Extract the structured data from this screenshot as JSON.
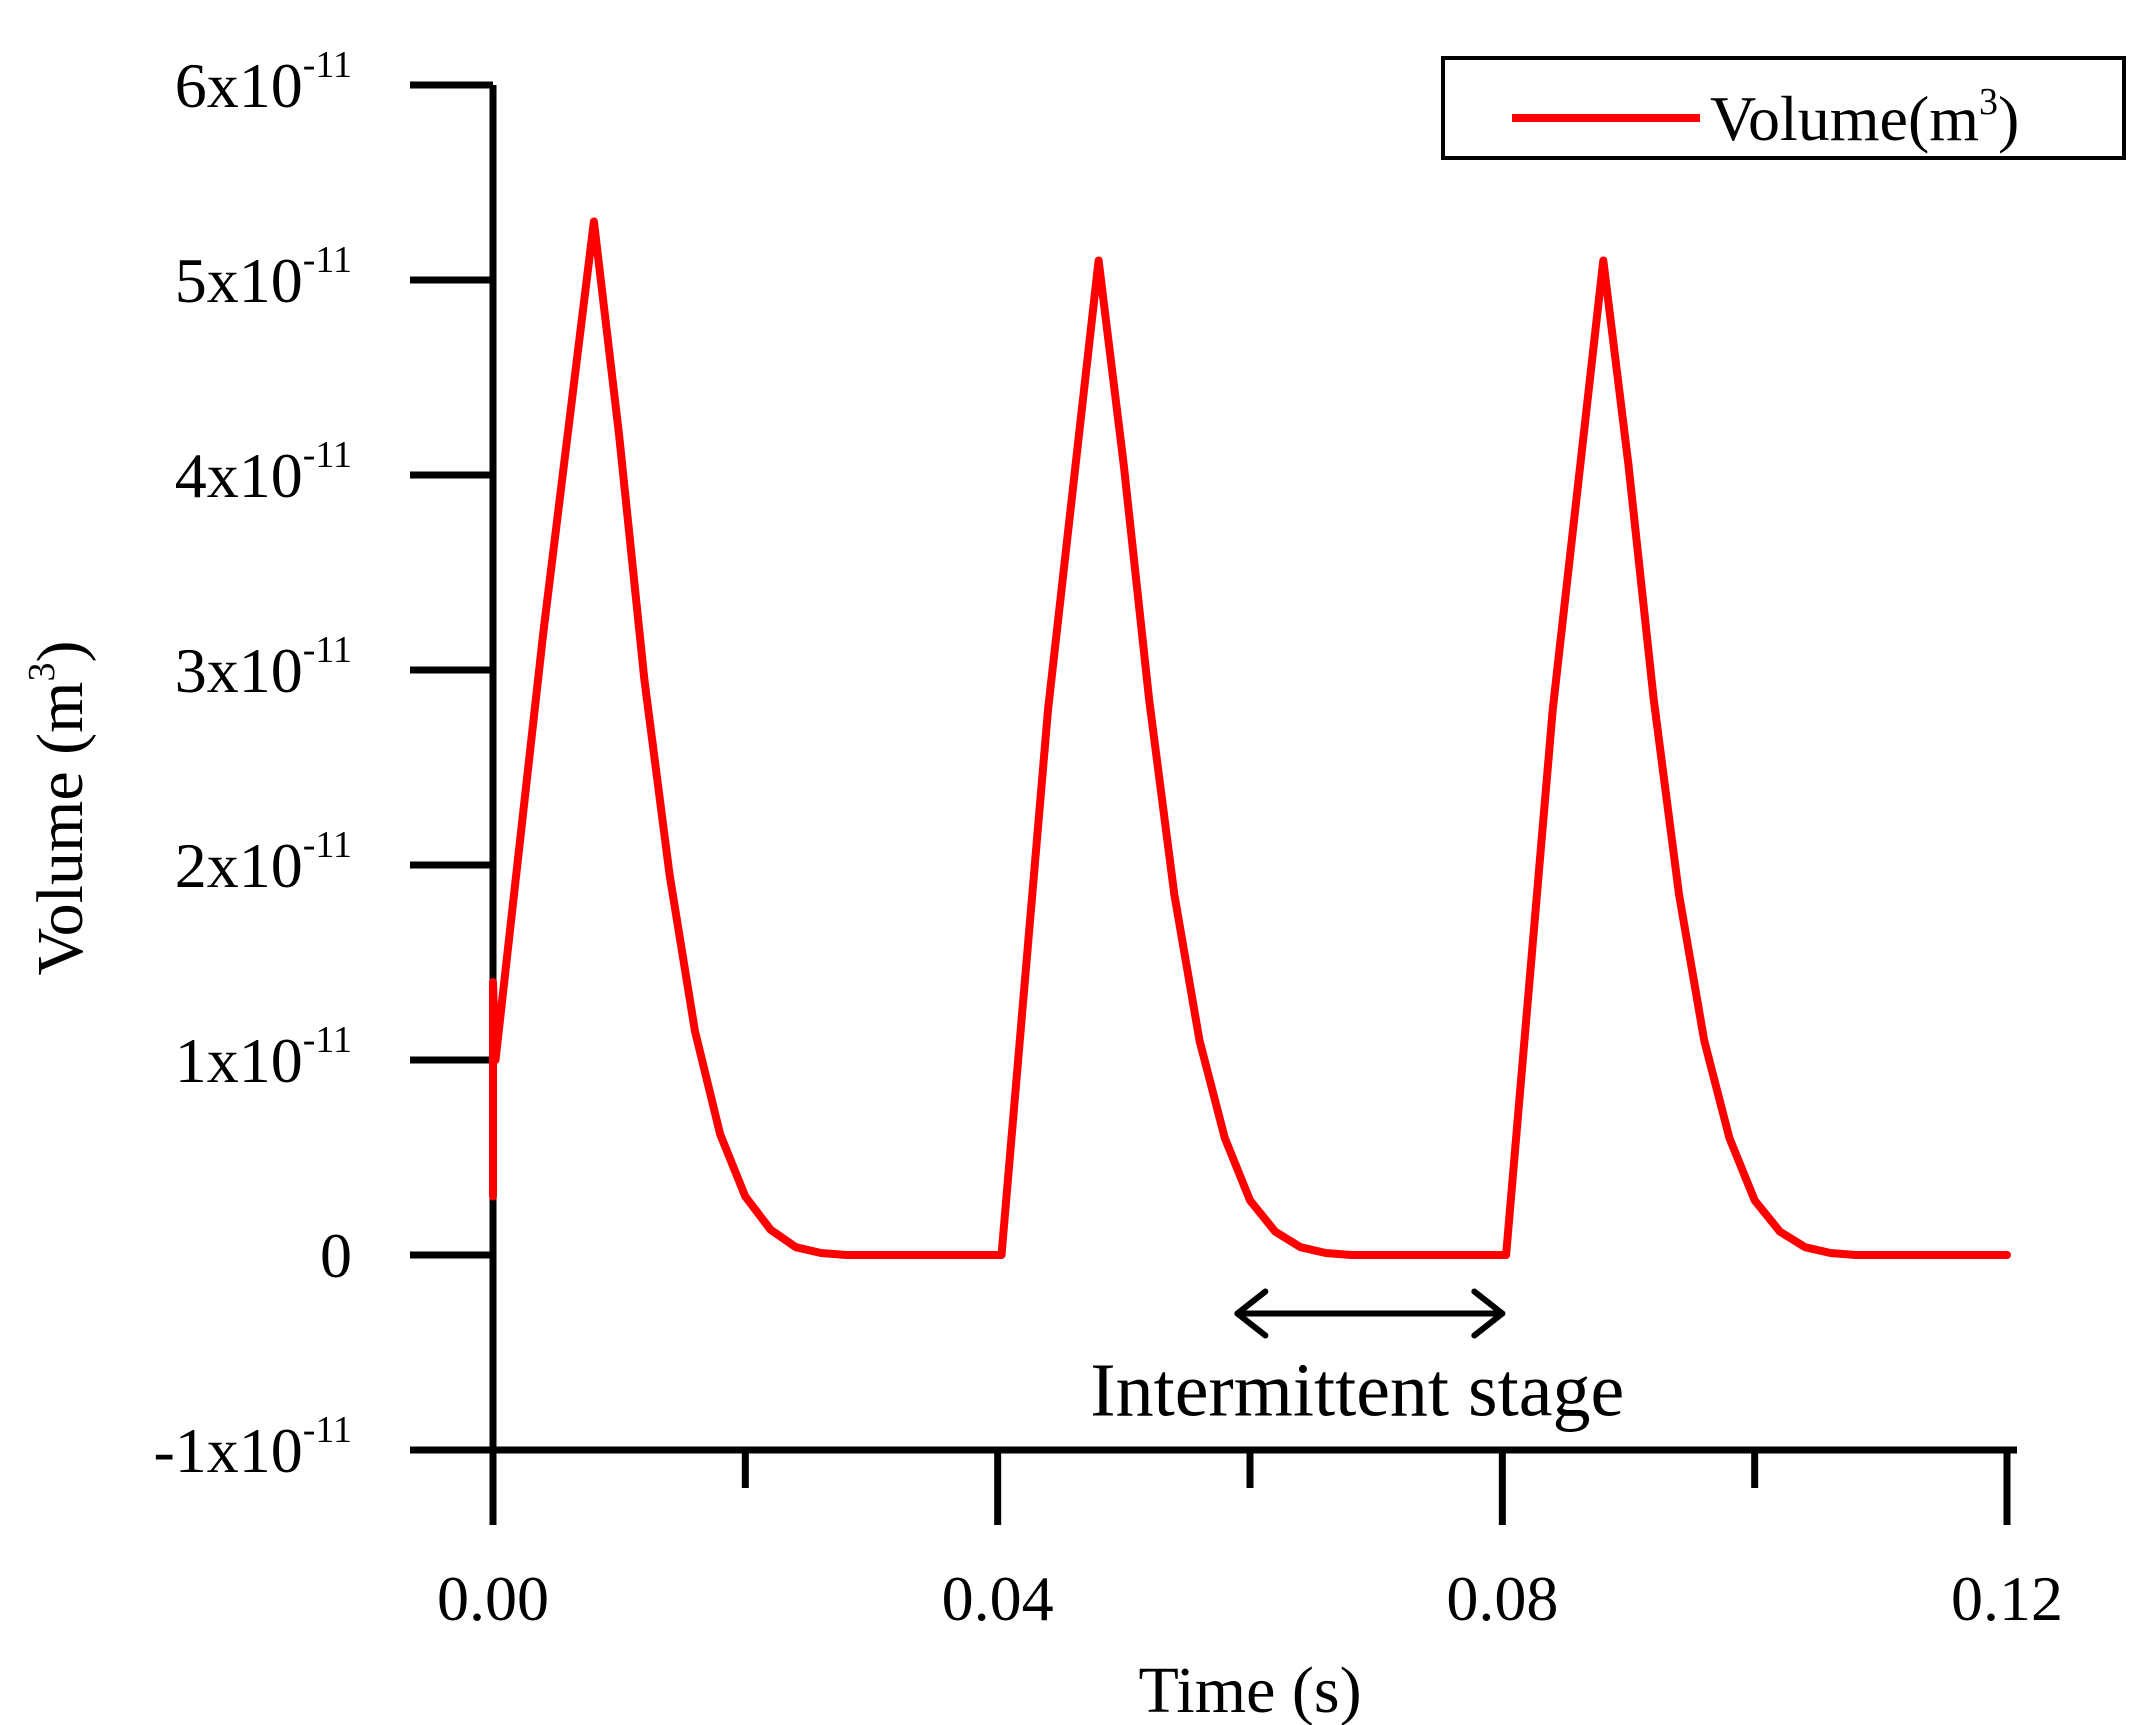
{
  "chart_data": {
    "type": "line",
    "title": "",
    "xlabel": "Time (s)",
    "ylabel": {
      "base": "Volume (m",
      "sup": "3",
      "close": ")"
    },
    "xlim": [
      0.0,
      0.12
    ],
    "ylim": [
      -1e-11,
      6e-11
    ],
    "x_major_ticks": [
      0.0,
      0.04,
      0.08,
      0.12
    ],
    "x_tick_labels": [
      "0.00",
      "0.04",
      "0.08",
      "0.12"
    ],
    "x_minor_ticks": [
      0.02,
      0.06,
      0.1
    ],
    "y_ticks": [
      {
        "value": -1e-11,
        "base": "-1x10",
        "exp": "-11"
      },
      {
        "value": 0,
        "base": "0",
        "exp": ""
      },
      {
        "value": 1e-11,
        "base": "1x10",
        "exp": "-11"
      },
      {
        "value": 2e-11,
        "base": "2x10",
        "exp": "-11"
      },
      {
        "value": 3e-11,
        "base": "3x10",
        "exp": "-11"
      },
      {
        "value": 4e-11,
        "base": "4x10",
        "exp": "-11"
      },
      {
        "value": 5e-11,
        "base": "5x10",
        "exp": "-11"
      },
      {
        "value": 6e-11,
        "base": "6x10",
        "exp": "-11"
      }
    ],
    "grid": false,
    "legend": {
      "position": "top-right",
      "label_base": "Volume(m",
      "label_sup": "3",
      "label_close": ")"
    },
    "series": [
      {
        "name": "Volume(m3)",
        "color": "#ff0000",
        "x": [
          0.0,
          0.0,
          0.0002,
          0.004,
          0.008,
          0.01,
          0.012,
          0.014,
          0.016,
          0.018,
          0.02,
          0.022,
          0.024,
          0.026,
          0.028,
          0.03,
          0.035,
          0.04,
          0.0403,
          0.044,
          0.048,
          0.05,
          0.052,
          0.054,
          0.056,
          0.058,
          0.06,
          0.062,
          0.064,
          0.066,
          0.068,
          0.07,
          0.075,
          0.08,
          0.0803,
          0.084,
          0.088,
          0.09,
          0.092,
          0.094,
          0.096,
          0.098,
          0.1,
          0.102,
          0.104,
          0.106,
          0.108,
          0.11,
          0.115,
          0.12
        ],
        "y": [
          3e-12,
          1.4e-11,
          1e-11,
          3.2e-11,
          5.3e-11,
          4.2e-11,
          2.95e-11,
          1.95e-11,
          1.15e-11,
          6.2e-12,
          3e-12,
          1.3e-12,
          4e-13,
          1e-13,
          0.0,
          0.0,
          0.0,
          0.0,
          0.0,
          2.8e-11,
          5.1e-11,
          4.05e-11,
          2.85e-11,
          1.85e-11,
          1.1e-11,
          6e-12,
          2.8e-12,
          1.2e-12,
          4e-13,
          1e-13,
          0.0,
          0.0,
          0.0,
          0.0,
          0.0,
          2.8e-11,
          5.1e-11,
          4.05e-11,
          2.85e-11,
          1.85e-11,
          1.1e-11,
          6e-12,
          2.8e-12,
          1.2e-12,
          4e-13,
          1e-13,
          0.0,
          0.0,
          0.0,
          0.0
        ]
      }
    ],
    "annotations": [
      {
        "type": "double-arrow",
        "x_start": 0.059,
        "x_end": 0.08,
        "y": -3e-12
      },
      {
        "type": "text",
        "text": "Intermittent stage",
        "x": 0.0685,
        "y": -7e-12
      }
    ]
  }
}
